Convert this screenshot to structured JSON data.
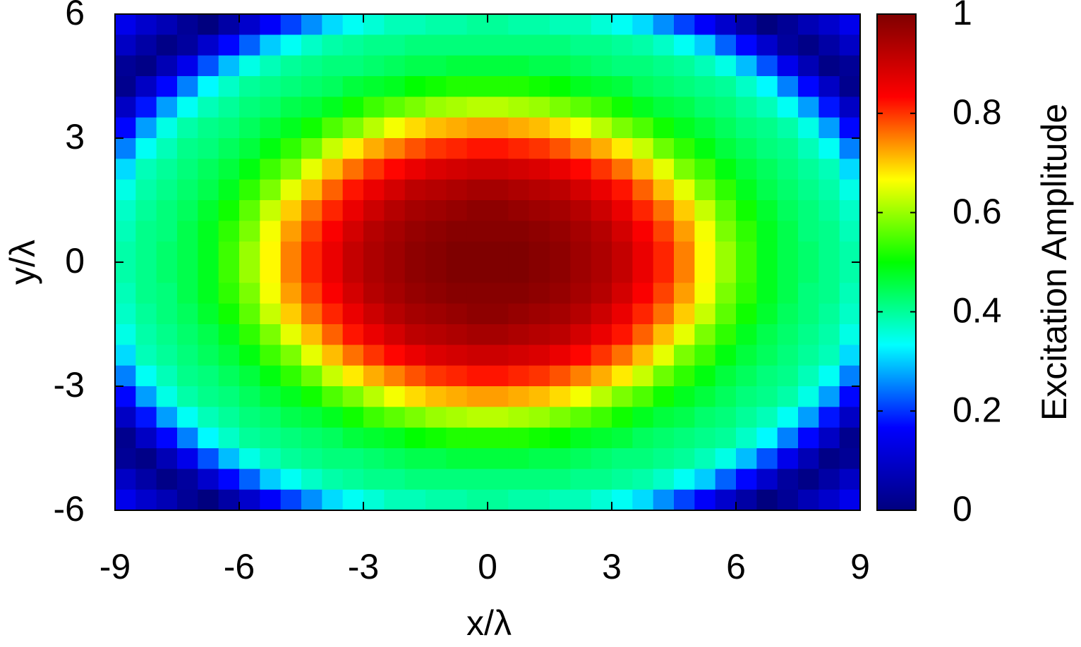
{
  "chart_data": {
    "type": "heatmap",
    "x_label": "x/λ",
    "y_label": "y/λ",
    "colorbar_label": "Excitation Amplitude",
    "xlim": [
      -9,
      9
    ],
    "ylim": [
      -6,
      6
    ],
    "zlim": [
      0,
      1
    ],
    "xticks": [
      -9,
      -6,
      -3,
      0,
      3,
      6,
      9
    ],
    "yticks": [
      -6,
      -3,
      0,
      3,
      6
    ],
    "zticks": [
      0,
      0.2,
      0.4,
      0.6,
      0.8,
      1
    ],
    "colormap": [
      "#00007f",
      "#0000ff",
      "#00ffff",
      "#00ff00",
      "#ffff00",
      "#ff0000",
      "#7f0000"
    ],
    "x": [
      -8.75,
      -8.25,
      -7.75,
      -7.25,
      -6.75,
      -6.25,
      -5.75,
      -5.25,
      -4.75,
      -4.25,
      -3.75,
      -3.25,
      -2.75,
      -2.25,
      -1.75,
      -1.25,
      -0.75,
      -0.25,
      0.25,
      0.75,
      1.25,
      1.75,
      2.25,
      2.75,
      3.25,
      3.75,
      4.25,
      4.75,
      5.25,
      5.75,
      6.25,
      6.75,
      7.25,
      7.75,
      8.25,
      8.75
    ],
    "y": [
      5.75,
      5.25,
      4.75,
      4.25,
      3.75,
      3.25,
      2.75,
      2.25,
      1.75,
      1.25,
      0.75,
      0.25,
      -0.25,
      -0.75,
      -1.25,
      -1.75,
      -2.25,
      -2.75,
      -3.25,
      -3.75,
      -4.25,
      -4.75,
      -5.25,
      -5.75
    ],
    "z": [
      [
        0.14,
        0.1,
        0.07,
        0.03,
        0.0,
        0.05,
        0.1,
        0.16,
        0.21,
        0.26,
        0.31,
        0.34,
        0.36,
        0.38,
        0.38,
        0.39,
        0.39,
        0.4,
        0.4,
        0.39,
        0.39,
        0.38,
        0.38,
        0.36,
        0.34,
        0.31,
        0.26,
        0.21,
        0.16,
        0.1,
        0.05,
        0.0,
        0.03,
        0.07,
        0.1,
        0.14
      ],
      [
        0.09,
        0.05,
        0.01,
        0.04,
        0.1,
        0.17,
        0.23,
        0.3,
        0.34,
        0.37,
        0.39,
        0.4,
        0.41,
        0.41,
        0.42,
        0.42,
        0.42,
        0.42,
        0.42,
        0.42,
        0.42,
        0.42,
        0.41,
        0.41,
        0.4,
        0.39,
        0.37,
        0.34,
        0.3,
        0.23,
        0.17,
        0.1,
        0.04,
        0.01,
        0.05,
        0.09
      ],
      [
        0.03,
        0.01,
        0.07,
        0.14,
        0.22,
        0.29,
        0.35,
        0.38,
        0.4,
        0.41,
        0.42,
        0.42,
        0.43,
        0.44,
        0.45,
        0.45,
        0.46,
        0.46,
        0.46,
        0.46,
        0.45,
        0.45,
        0.44,
        0.43,
        0.42,
        0.42,
        0.41,
        0.4,
        0.38,
        0.35,
        0.29,
        0.22,
        0.14,
        0.07,
        0.01,
        0.03
      ],
      [
        0.02,
        0.09,
        0.17,
        0.25,
        0.33,
        0.37,
        0.4,
        0.41,
        0.42,
        0.43,
        0.44,
        0.46,
        0.47,
        0.48,
        0.5,
        0.51,
        0.52,
        0.52,
        0.52,
        0.52,
        0.51,
        0.5,
        0.48,
        0.47,
        0.46,
        0.44,
        0.43,
        0.42,
        0.41,
        0.4,
        0.37,
        0.33,
        0.25,
        0.17,
        0.09,
        0.02
      ],
      [
        0.09,
        0.18,
        0.27,
        0.34,
        0.38,
        0.4,
        0.42,
        0.43,
        0.45,
        0.46,
        0.48,
        0.51,
        0.54,
        0.56,
        0.58,
        0.6,
        0.61,
        0.62,
        0.62,
        0.61,
        0.6,
        0.58,
        0.56,
        0.54,
        0.51,
        0.48,
        0.46,
        0.45,
        0.43,
        0.42,
        0.4,
        0.38,
        0.34,
        0.27,
        0.18,
        0.09
      ],
      [
        0.17,
        0.27,
        0.35,
        0.39,
        0.41,
        0.42,
        0.44,
        0.46,
        0.48,
        0.51,
        0.55,
        0.58,
        0.62,
        0.66,
        0.69,
        0.71,
        0.72,
        0.73,
        0.73,
        0.72,
        0.71,
        0.69,
        0.66,
        0.62,
        0.58,
        0.55,
        0.51,
        0.48,
        0.46,
        0.44,
        0.42,
        0.41,
        0.39,
        0.35,
        0.27,
        0.17
      ],
      [
        0.25,
        0.34,
        0.38,
        0.41,
        0.42,
        0.44,
        0.46,
        0.49,
        0.53,
        0.57,
        0.63,
        0.68,
        0.72,
        0.75,
        0.78,
        0.8,
        0.81,
        0.82,
        0.82,
        0.81,
        0.8,
        0.78,
        0.75,
        0.72,
        0.68,
        0.63,
        0.57,
        0.53,
        0.49,
        0.46,
        0.44,
        0.42,
        0.41,
        0.38,
        0.34,
        0.25
      ],
      [
        0.31,
        0.38,
        0.4,
        0.42,
        0.44,
        0.46,
        0.49,
        0.54,
        0.58,
        0.65,
        0.71,
        0.76,
        0.8,
        0.83,
        0.86,
        0.88,
        0.89,
        0.9,
        0.9,
        0.89,
        0.88,
        0.86,
        0.83,
        0.8,
        0.76,
        0.71,
        0.65,
        0.58,
        0.54,
        0.49,
        0.46,
        0.44,
        0.42,
        0.4,
        0.38,
        0.31
      ],
      [
        0.35,
        0.39,
        0.41,
        0.43,
        0.45,
        0.48,
        0.53,
        0.58,
        0.65,
        0.71,
        0.77,
        0.82,
        0.86,
        0.89,
        0.92,
        0.93,
        0.94,
        0.95,
        0.95,
        0.94,
        0.93,
        0.92,
        0.89,
        0.86,
        0.82,
        0.77,
        0.71,
        0.65,
        0.58,
        0.53,
        0.48,
        0.45,
        0.43,
        0.41,
        0.39,
        0.35
      ],
      [
        0.37,
        0.4,
        0.42,
        0.44,
        0.47,
        0.51,
        0.56,
        0.63,
        0.7,
        0.76,
        0.81,
        0.86,
        0.9,
        0.93,
        0.95,
        0.96,
        0.97,
        0.98,
        0.98,
        0.97,
        0.96,
        0.95,
        0.93,
        0.9,
        0.86,
        0.81,
        0.76,
        0.7,
        0.63,
        0.56,
        0.51,
        0.47,
        0.44,
        0.42,
        0.4,
        0.37
      ],
      [
        0.38,
        0.41,
        0.42,
        0.45,
        0.48,
        0.53,
        0.58,
        0.66,
        0.73,
        0.79,
        0.84,
        0.89,
        0.93,
        0.95,
        0.97,
        0.98,
        0.99,
        0.99,
        0.99,
        0.99,
        0.98,
        0.97,
        0.95,
        0.93,
        0.89,
        0.84,
        0.79,
        0.73,
        0.66,
        0.58,
        0.53,
        0.48,
        0.45,
        0.42,
        0.41,
        0.38
      ],
      [
        0.39,
        0.41,
        0.43,
        0.45,
        0.48,
        0.54,
        0.6,
        0.67,
        0.75,
        0.81,
        0.86,
        0.91,
        0.94,
        0.96,
        0.98,
        0.99,
        1.0,
        1.0,
        1.0,
        1.0,
        0.99,
        0.98,
        0.96,
        0.94,
        0.91,
        0.86,
        0.81,
        0.75,
        0.67,
        0.6,
        0.54,
        0.48,
        0.45,
        0.43,
        0.41,
        0.39
      ],
      [
        0.39,
        0.41,
        0.43,
        0.45,
        0.48,
        0.54,
        0.6,
        0.67,
        0.75,
        0.81,
        0.86,
        0.91,
        0.94,
        0.96,
        0.98,
        0.99,
        1.0,
        1.0,
        1.0,
        1.0,
        0.99,
        0.98,
        0.96,
        0.94,
        0.91,
        0.86,
        0.81,
        0.75,
        0.67,
        0.6,
        0.54,
        0.48,
        0.45,
        0.43,
        0.41,
        0.39
      ],
      [
        0.38,
        0.41,
        0.42,
        0.45,
        0.48,
        0.53,
        0.58,
        0.66,
        0.73,
        0.79,
        0.84,
        0.89,
        0.93,
        0.95,
        0.97,
        0.98,
        0.99,
        0.99,
        0.99,
        0.99,
        0.98,
        0.97,
        0.95,
        0.93,
        0.89,
        0.84,
        0.79,
        0.73,
        0.66,
        0.58,
        0.53,
        0.48,
        0.45,
        0.42,
        0.41,
        0.38
      ],
      [
        0.37,
        0.4,
        0.42,
        0.44,
        0.47,
        0.51,
        0.56,
        0.63,
        0.7,
        0.76,
        0.81,
        0.86,
        0.9,
        0.93,
        0.95,
        0.96,
        0.97,
        0.98,
        0.98,
        0.97,
        0.96,
        0.95,
        0.93,
        0.9,
        0.86,
        0.81,
        0.76,
        0.7,
        0.63,
        0.56,
        0.51,
        0.47,
        0.44,
        0.42,
        0.4,
        0.37
      ],
      [
        0.35,
        0.39,
        0.41,
        0.43,
        0.45,
        0.48,
        0.53,
        0.58,
        0.65,
        0.71,
        0.77,
        0.82,
        0.86,
        0.89,
        0.92,
        0.93,
        0.94,
        0.95,
        0.95,
        0.94,
        0.93,
        0.92,
        0.89,
        0.86,
        0.82,
        0.77,
        0.71,
        0.65,
        0.58,
        0.53,
        0.48,
        0.45,
        0.43,
        0.41,
        0.39,
        0.35
      ],
      [
        0.31,
        0.38,
        0.4,
        0.42,
        0.44,
        0.46,
        0.49,
        0.54,
        0.58,
        0.65,
        0.71,
        0.76,
        0.8,
        0.83,
        0.86,
        0.88,
        0.89,
        0.9,
        0.9,
        0.89,
        0.88,
        0.86,
        0.83,
        0.8,
        0.76,
        0.71,
        0.65,
        0.58,
        0.54,
        0.49,
        0.46,
        0.44,
        0.42,
        0.4,
        0.38,
        0.31
      ],
      [
        0.25,
        0.34,
        0.38,
        0.41,
        0.42,
        0.44,
        0.46,
        0.49,
        0.53,
        0.57,
        0.63,
        0.68,
        0.72,
        0.75,
        0.78,
        0.8,
        0.81,
        0.82,
        0.82,
        0.81,
        0.8,
        0.78,
        0.75,
        0.72,
        0.68,
        0.63,
        0.57,
        0.53,
        0.49,
        0.46,
        0.44,
        0.42,
        0.41,
        0.38,
        0.34,
        0.25
      ],
      [
        0.17,
        0.27,
        0.35,
        0.39,
        0.41,
        0.42,
        0.44,
        0.46,
        0.48,
        0.51,
        0.55,
        0.58,
        0.62,
        0.66,
        0.69,
        0.71,
        0.72,
        0.73,
        0.73,
        0.72,
        0.71,
        0.69,
        0.66,
        0.62,
        0.58,
        0.55,
        0.51,
        0.48,
        0.46,
        0.44,
        0.42,
        0.41,
        0.39,
        0.35,
        0.27,
        0.17
      ],
      [
        0.09,
        0.18,
        0.27,
        0.34,
        0.38,
        0.4,
        0.42,
        0.43,
        0.45,
        0.46,
        0.48,
        0.51,
        0.54,
        0.56,
        0.58,
        0.6,
        0.61,
        0.62,
        0.62,
        0.61,
        0.6,
        0.58,
        0.56,
        0.54,
        0.51,
        0.48,
        0.46,
        0.45,
        0.43,
        0.42,
        0.4,
        0.38,
        0.34,
        0.27,
        0.18,
        0.09
      ],
      [
        0.02,
        0.09,
        0.17,
        0.25,
        0.33,
        0.37,
        0.4,
        0.41,
        0.42,
        0.43,
        0.44,
        0.46,
        0.47,
        0.48,
        0.5,
        0.51,
        0.52,
        0.52,
        0.52,
        0.52,
        0.51,
        0.5,
        0.48,
        0.47,
        0.46,
        0.44,
        0.43,
        0.42,
        0.41,
        0.4,
        0.37,
        0.33,
        0.25,
        0.17,
        0.09,
        0.02
      ],
      [
        0.03,
        0.01,
        0.07,
        0.14,
        0.22,
        0.29,
        0.35,
        0.38,
        0.4,
        0.41,
        0.42,
        0.42,
        0.43,
        0.44,
        0.45,
        0.45,
        0.46,
        0.46,
        0.46,
        0.46,
        0.45,
        0.45,
        0.44,
        0.43,
        0.42,
        0.42,
        0.41,
        0.4,
        0.38,
        0.35,
        0.29,
        0.22,
        0.14,
        0.07,
        0.01,
        0.03
      ],
      [
        0.09,
        0.05,
        0.01,
        0.04,
        0.1,
        0.17,
        0.23,
        0.3,
        0.34,
        0.37,
        0.39,
        0.4,
        0.41,
        0.41,
        0.42,
        0.42,
        0.42,
        0.42,
        0.42,
        0.42,
        0.42,
        0.42,
        0.41,
        0.41,
        0.4,
        0.39,
        0.37,
        0.34,
        0.3,
        0.23,
        0.17,
        0.1,
        0.04,
        0.01,
        0.05,
        0.09
      ],
      [
        0.14,
        0.1,
        0.07,
        0.03,
        0.0,
        0.05,
        0.1,
        0.16,
        0.21,
        0.26,
        0.31,
        0.34,
        0.36,
        0.38,
        0.38,
        0.39,
        0.39,
        0.4,
        0.4,
        0.39,
        0.39,
        0.38,
        0.38,
        0.36,
        0.34,
        0.31,
        0.26,
        0.21,
        0.16,
        0.1,
        0.05,
        0.0,
        0.03,
        0.07,
        0.1,
        0.14
      ]
    ]
  }
}
